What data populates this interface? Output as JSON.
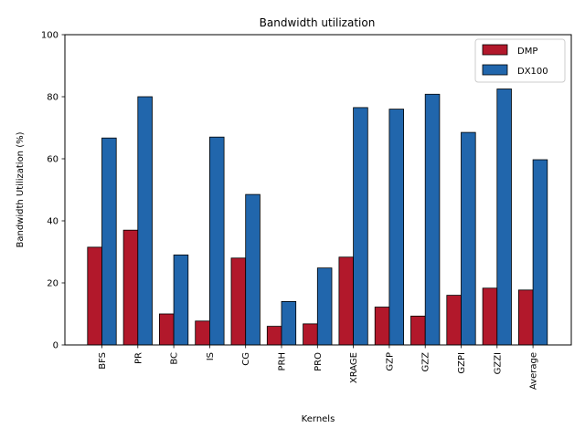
{
  "chart_data": {
    "type": "bar",
    "title": "Bandwidth utilization",
    "xlabel": "Kernels",
    "ylabel": "Bandwidth Utilization (%)",
    "ylim": [
      0,
      100
    ],
    "yticks": [
      0,
      20,
      40,
      60,
      80,
      100
    ],
    "grid": false,
    "legend_position": "top-right",
    "categories": [
      "BFS",
      "PR",
      "BC",
      "IS",
      "CG",
      "PRH",
      "PRO",
      "XRAGE",
      "GZP",
      "GZZ",
      "GZPI",
      "GZZI",
      "Average"
    ],
    "series": [
      {
        "name": "DMP",
        "color": "#b2182b",
        "values": [
          31.5,
          37.0,
          10.0,
          7.7,
          28.0,
          6.0,
          6.8,
          28.3,
          12.2,
          9.3,
          16.0,
          18.3,
          17.7
        ]
      },
      {
        "name": "DX100",
        "color": "#2166ac",
        "values": [
          66.7,
          80.0,
          29.0,
          67.0,
          48.5,
          14.0,
          24.8,
          76.5,
          76.0,
          80.8,
          68.5,
          82.5,
          59.7
        ]
      }
    ]
  }
}
